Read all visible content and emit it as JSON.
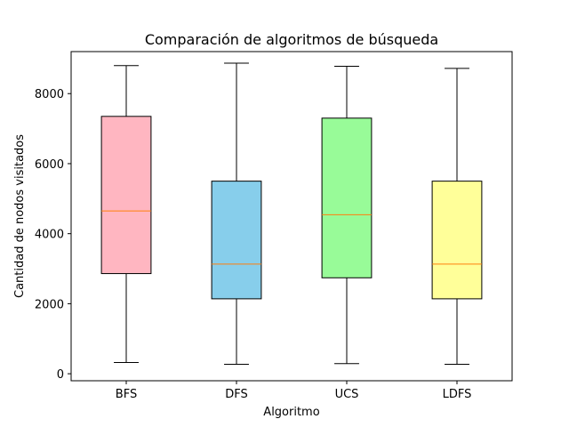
{
  "chart_data": {
    "type": "boxplot",
    "title": "Comparación de algoritmos de búsqueda",
    "xlabel": "Algoritmo",
    "ylabel": "Cantidad de nodos visitados",
    "ylim": [
      -200,
      9200
    ],
    "yticks": [
      0,
      2000,
      4000,
      6000,
      8000
    ],
    "grid": false,
    "categories": [
      "BFS",
      "DFS",
      "UCS",
      "LDFS"
    ],
    "boxes": [
      {
        "name": "BFS",
        "whisker_low": 320,
        "q1": 2860,
        "median": 4650,
        "q3": 7350,
        "whisker_high": 8800,
        "color": "#ffb6c1"
      },
      {
        "name": "DFS",
        "whisker_low": 270,
        "q1": 2140,
        "median": 3130,
        "q3": 5500,
        "whisker_high": 8870,
        "color": "#87ceeb"
      },
      {
        "name": "UCS",
        "whisker_low": 290,
        "q1": 2740,
        "median": 4540,
        "q3": 7300,
        "whisker_high": 8780,
        "color": "#98fb98"
      },
      {
        "name": "LDFS",
        "whisker_low": 270,
        "q1": 2140,
        "median": 3130,
        "q3": 5500,
        "whisker_high": 8720,
        "color": "#ffff99"
      }
    ],
    "median_color": "#ff7f0e"
  }
}
